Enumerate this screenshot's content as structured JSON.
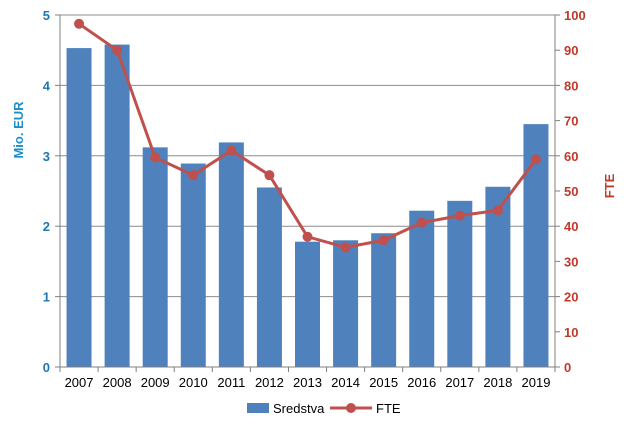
{
  "chart_data": {
    "type": "bar+line",
    "categories": [
      "2007",
      "2008",
      "2009",
      "2010",
      "2011",
      "2012",
      "2013",
      "2014",
      "2015",
      "2016",
      "2017",
      "2018",
      "2019"
    ],
    "series": [
      {
        "name": "Sredstva",
        "type": "bar",
        "axis": "left",
        "values": [
          4.53,
          4.58,
          3.12,
          2.89,
          3.19,
          2.55,
          1.78,
          1.8,
          1.9,
          2.22,
          2.36,
          2.56,
          3.45
        ],
        "color": "#4f81bd"
      },
      {
        "name": "FTE",
        "type": "line",
        "axis": "right",
        "values": [
          97.5,
          90,
          59.5,
          54.5,
          61.5,
          54.5,
          37,
          34,
          36,
          41,
          43,
          44.5,
          59
        ],
        "color": "#c0504d"
      }
    ],
    "ylabel": "Mio. EUR",
    "y2label": "FTE",
    "ylim": [
      0,
      5
    ],
    "y2lim": [
      0,
      100
    ],
    "yticks": [
      "0",
      "1",
      "2",
      "3",
      "4",
      "5"
    ],
    "y2ticks": [
      "0",
      "10",
      "20",
      "30",
      "40",
      "50",
      "60",
      "70",
      "80",
      "90",
      "100"
    ],
    "grid": true,
    "legend_position": "bottom"
  }
}
